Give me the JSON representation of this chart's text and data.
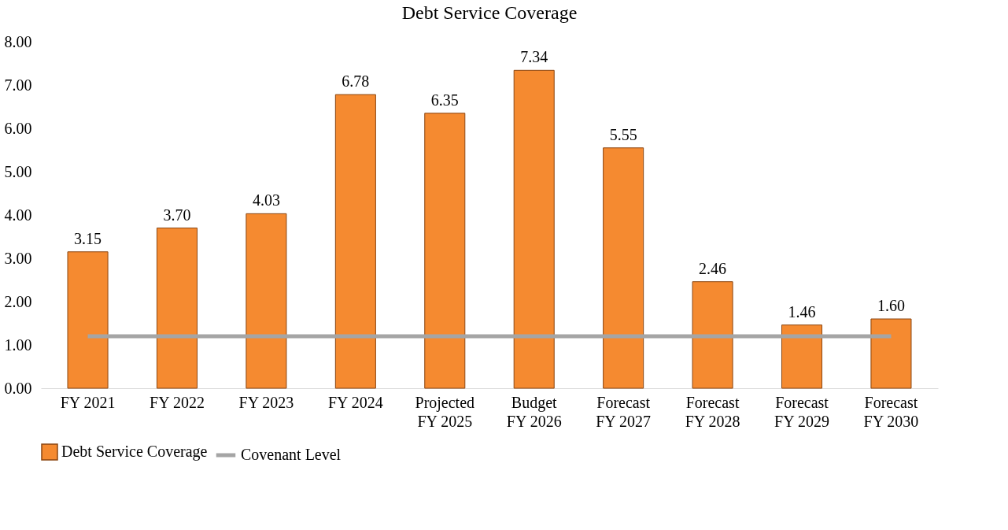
{
  "chart_data": {
    "type": "bar",
    "title": "Debt Service Coverage",
    "categories": [
      "FY 2021",
      "FY 2022",
      "FY 2023",
      "FY 2024",
      "Projected FY 2025",
      "Budget FY 2026",
      "Forecast FY 2027",
      "Forecast FY 2028",
      "Forecast FY 2029",
      "Forecast FY 2030"
    ],
    "series": [
      {
        "name": "Debt Service Coverage",
        "color": "#f58a30",
        "values": [
          3.15,
          3.7,
          4.03,
          6.78,
          6.35,
          7.34,
          5.55,
          2.46,
          1.46,
          1.6
        ],
        "value_labels": [
          "3.15",
          "3.70",
          "4.03",
          "6.78",
          "6.35",
          "7.34",
          "5.55",
          "2.46",
          "1.46",
          "1.60"
        ]
      },
      {
        "name": "Covenant Level",
        "type": "line",
        "color": "#a5a5a5",
        "values": [
          1.2,
          1.2,
          1.2,
          1.2,
          1.2,
          1.2,
          1.2,
          1.2,
          1.2,
          1.2
        ]
      }
    ],
    "ylim": [
      0,
      8
    ],
    "yticks": [
      {
        "value": 0,
        "label": "0.00"
      },
      {
        "value": 1,
        "label": "1.00"
      },
      {
        "value": 2,
        "label": "2.00"
      },
      {
        "value": 3,
        "label": "3.00"
      },
      {
        "value": 4,
        "label": "4.00"
      },
      {
        "value": 5,
        "label": "5.00"
      },
      {
        "value": 6,
        "label": "6.00"
      },
      {
        "value": 7,
        "label": "7.00"
      },
      {
        "value": 8,
        "label": "8.00"
      }
    ],
    "grid": false,
    "legend": "bottom"
  }
}
